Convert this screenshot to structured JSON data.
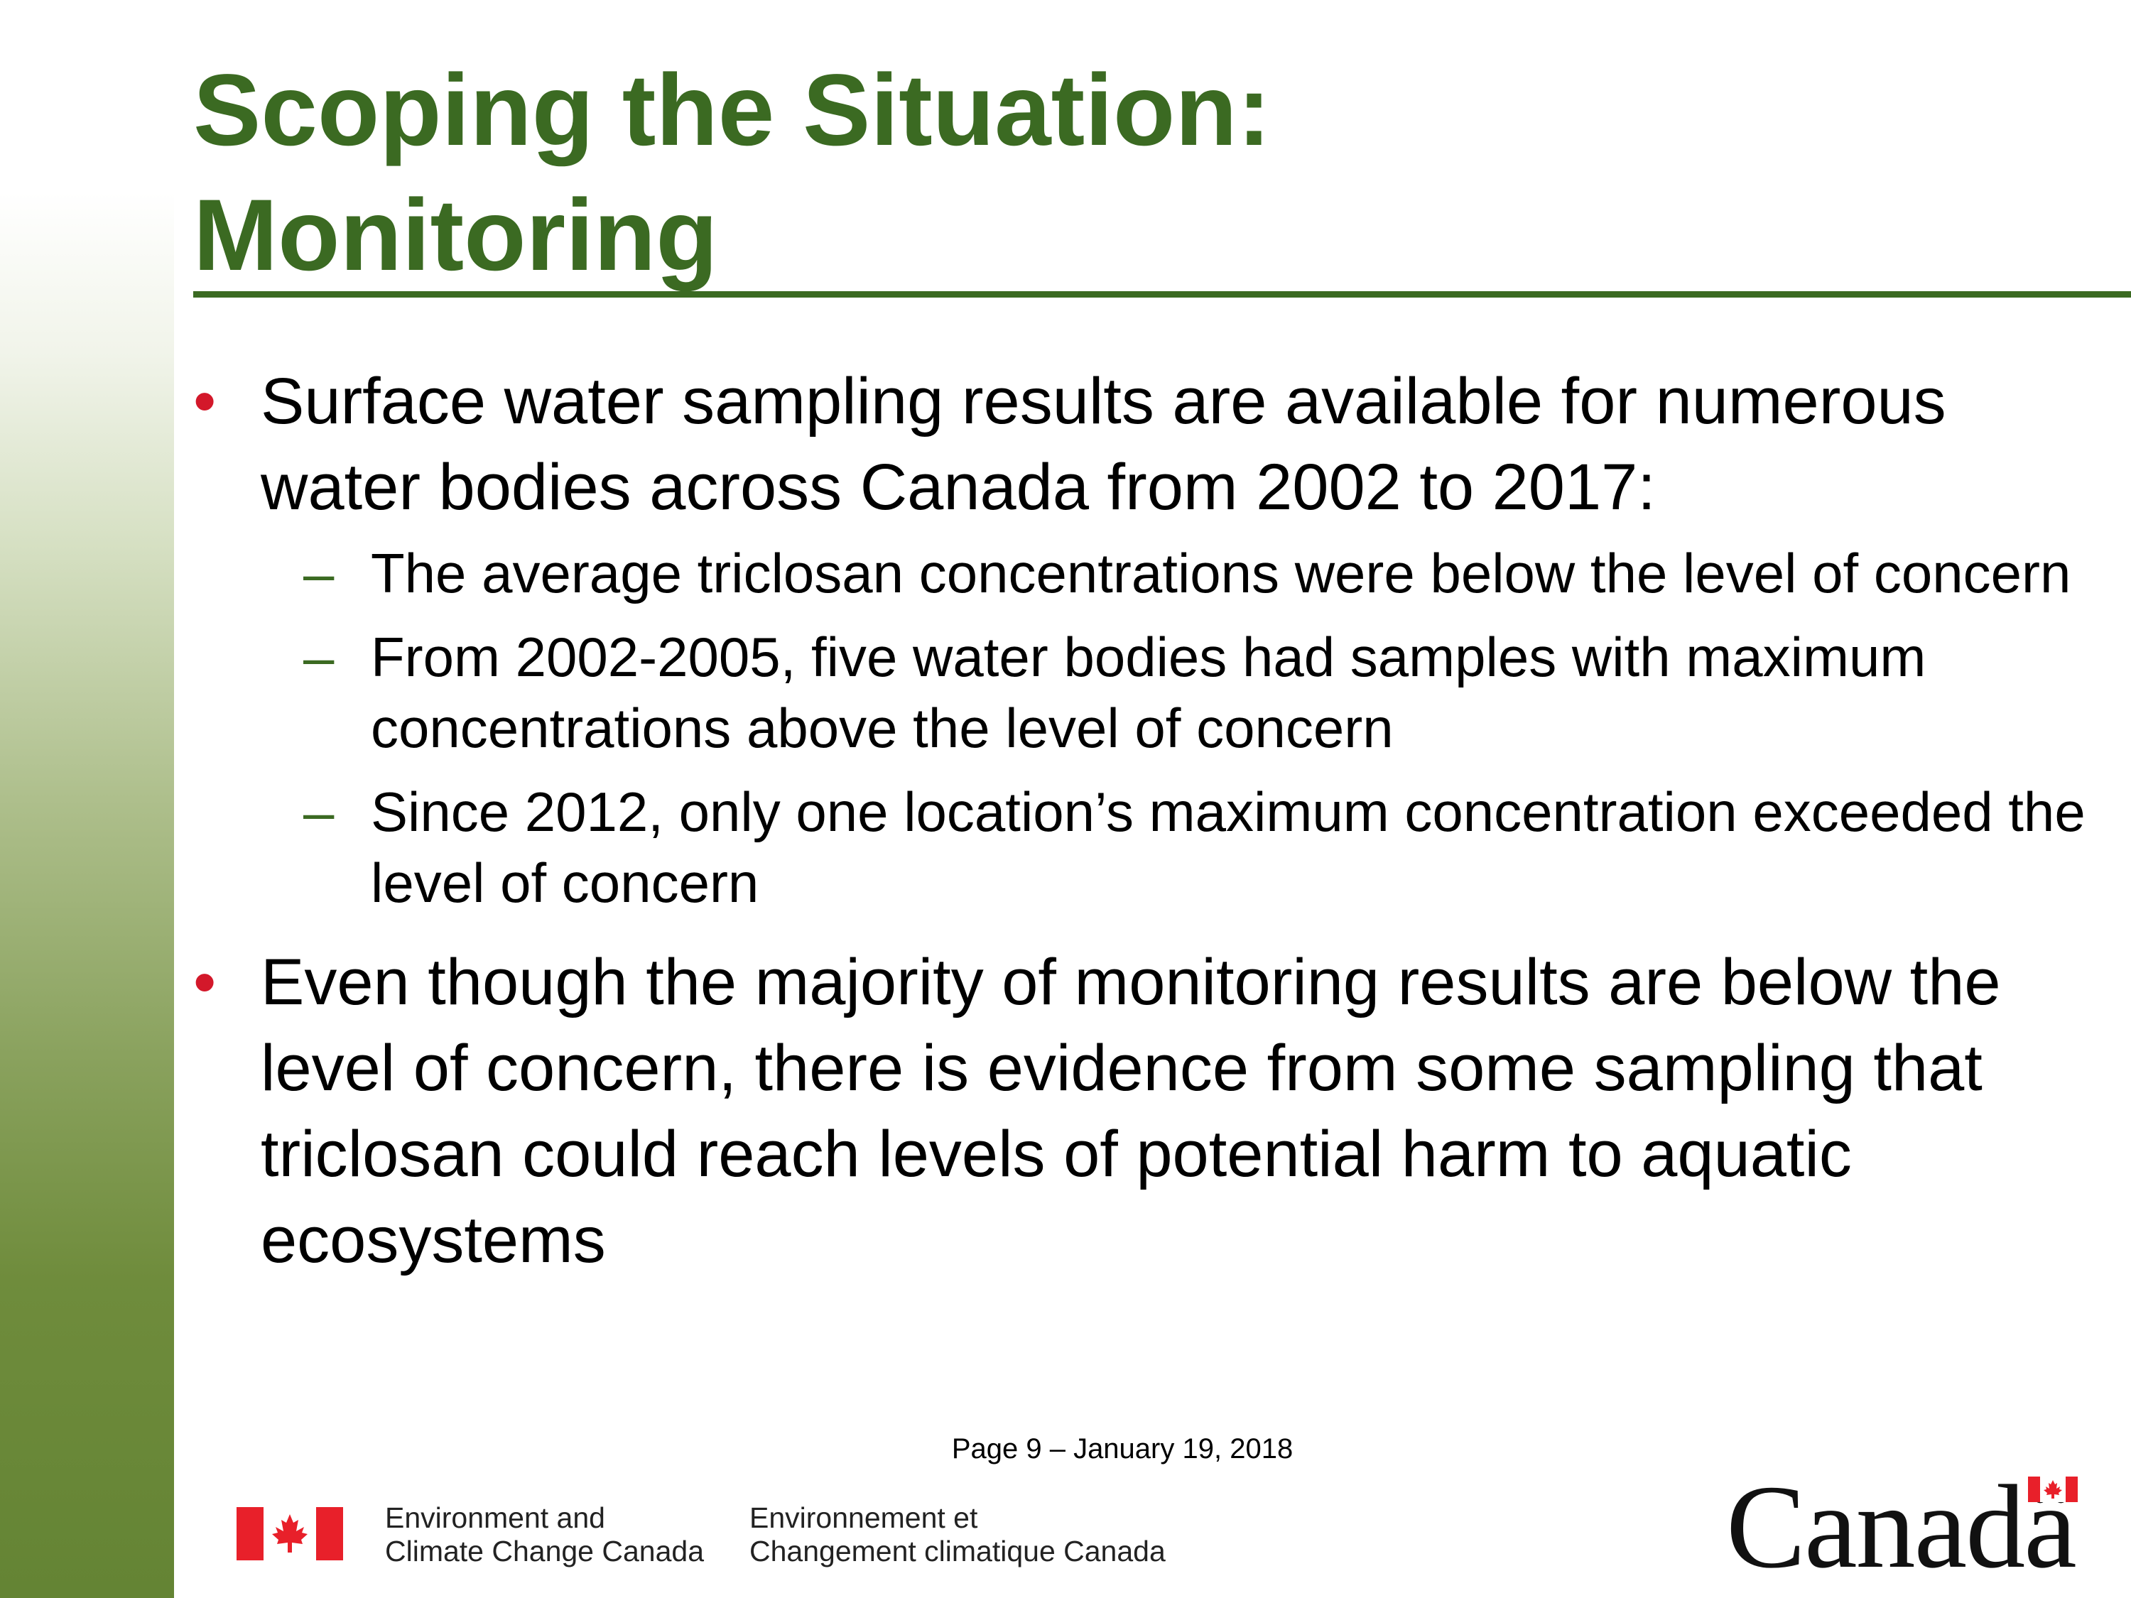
{
  "slide": {
    "title_lines": [
      "Scoping the Situation:",
      "Monitoring"
    ],
    "bullets": [
      {
        "text": "Surface water sampling results are available for numerous water bodies across Canada from 2002 to 2017:",
        "subs": [
          "The average triclosan concentrations were below the level of concern",
          "From 2002-2005, five water bodies had samples with maximum concentrations above the level of concern",
          "Since 2012, only one location’s maximum concentration exceeded the level of concern"
        ]
      },
      {
        "text": "Even though the majority of monitoring results are below the level of concern, there is evidence from some sampling that triclosan could reach levels of potential harm to aquatic ecosystems",
        "subs": []
      }
    ],
    "bullet_symbol": "•",
    "sub_symbol": "–"
  },
  "footer": {
    "page_label": "Page 9 – January 19, 2018",
    "org_en": [
      "Environment and",
      "Climate Change Canada"
    ],
    "org_fr": [
      "Environnement et",
      "Changement climatique Canada"
    ],
    "wordmark": "Canadä"
  },
  "colors": {
    "title": "#3b6a22",
    "bullet": "#d3182a",
    "flag_red": "#e8202a"
  },
  "icons": [
    "canada-flag-icon",
    "canada-wordmark-logo"
  ]
}
